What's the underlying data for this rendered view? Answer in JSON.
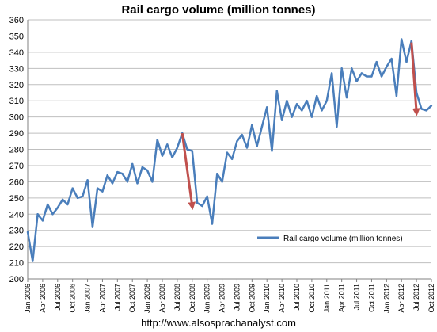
{
  "chart_data": {
    "type": "line",
    "title": "Rail cargo volume (million tonnes)",
    "xlabel": "",
    "ylabel": "",
    "ylim": [
      200,
      360
    ],
    "yticks": [
      200,
      210,
      220,
      230,
      240,
      250,
      260,
      270,
      280,
      290,
      300,
      310,
      320,
      330,
      340,
      350,
      360
    ],
    "grid": "horizontal",
    "legend_position": "right",
    "tick_labels": [
      "Jan 2006",
      "Apr 2006",
      "Jul 2006",
      "Oct 2006",
      "Jan 2007",
      "Apr 2007",
      "Jul 2007",
      "Oct 2007",
      "Jan 2008",
      "Apr 2008",
      "Jul 2008",
      "Oct 2008",
      "Jan 2009",
      "Apr 2009",
      "Jul 2009",
      "Oct 2009",
      "Jan 2010",
      "Apr 2010",
      "Jul 2010",
      "Oct 2010",
      "Jan 2011",
      "Apr 2011",
      "Jul 2011",
      "Oct 2011",
      "Jan 2012",
      "Apr 2012",
      "Jul 2012",
      "Oct 2012"
    ],
    "series": [
      {
        "name": "Rail cargo volume (million tonnes)",
        "color": "#4a7ebb",
        "values": [
          229,
          211,
          240,
          236,
          246,
          240,
          244,
          249,
          246,
          256,
          250,
          251,
          261,
          232,
          256,
          254,
          264,
          259,
          266,
          265,
          260,
          271,
          259,
          269,
          267,
          260,
          286,
          276,
          283,
          275,
          281,
          290,
          280,
          279,
          247,
          245,
          251,
          234,
          265,
          260,
          278,
          274,
          285,
          289,
          281,
          295,
          282,
          294,
          306,
          279,
          316,
          298,
          310,
          300,
          308,
          304,
          310,
          300,
          313,
          304,
          310,
          327,
          294,
          330,
          312,
          330,
          322,
          327,
          325,
          325,
          334,
          325,
          331,
          336,
          313,
          348,
          334,
          347,
          315,
          305,
          304,
          307
        ]
      }
    ],
    "annotations": [
      {
        "type": "arrow",
        "color": "#c0504d",
        "from": [
          31,
          290
        ],
        "to": [
          33,
          245
        ]
      },
      {
        "type": "arrow",
        "color": "#c0504d",
        "from": [
          77,
          346
        ],
        "to": [
          78,
          303
        ]
      }
    ]
  },
  "source_url": "http://www.alsosprachanalyst.com"
}
